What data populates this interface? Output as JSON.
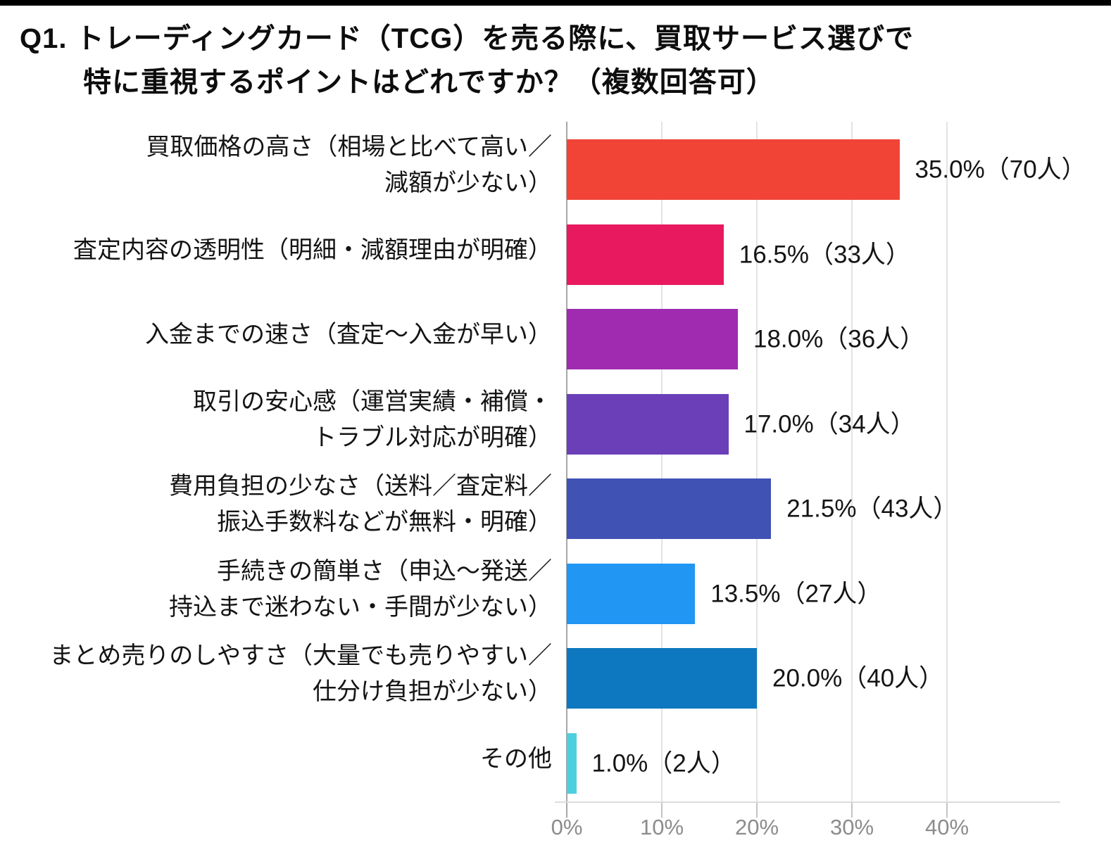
{
  "page": {
    "title_line1": "Q1. トレーディングカード（TCG）を売る際に、買取サービス選びで",
    "title_line2": "特に重視するポイントはどれですか？（複数回答可）"
  },
  "chart_data": {
    "type": "bar",
    "orientation": "horizontal",
    "title": "Q1. トレーディングカード（TCG）を売る際に、買取サービス選びで特に重視するポイントはどれですか？（複数回答可）",
    "categories": [
      "買取価格の高さ（相場と比べて高い／減額が少ない）",
      "査定内容の透明性（明細・減額理由が明確）",
      "入金までの速さ（査定～入金が早い）",
      "取引の安心感（運営実績・補償・トラブル対応が明確）",
      "費用負担の少なさ（送料／査定料／振込手数料などが無料・明確）",
      "手続きの簡単さ（申込～発送／持込まで迷わない・手間が少ない）",
      "まとめ売りのしやすさ（大量でも売りやすい／仕分け負担が少ない）",
      "その他"
    ],
    "category_lines": [
      [
        "買取価格の高さ（相場と比べて高い／",
        "減額が少ない）"
      ],
      [
        "査定内容の透明性（明細・減額理由が明確）"
      ],
      [
        "入金までの速さ（査定～入金が早い）"
      ],
      [
        "取引の安心感（運営実績・補償・",
        "トラブル対応が明確）"
      ],
      [
        "費用負担の少なさ（送料／査定料／",
        "振込手数料などが無料・明確）"
      ],
      [
        "手続きの簡単さ（申込～発送／",
        "持込まで迷わない・手間が少ない）"
      ],
      [
        "まとめ売りのしやすさ（大量でも売りやすい／",
        "仕分け負担が少ない）"
      ],
      [
        "その他"
      ]
    ],
    "values": [
      35.0,
      16.5,
      18.0,
      17.0,
      21.5,
      13.5,
      20.0,
      1.0
    ],
    "counts": [
      70,
      33,
      36,
      34,
      43,
      27,
      40,
      2
    ],
    "value_labels": [
      "35.0%（70人）",
      "16.5%（33人）",
      "18.0%（36人）",
      "17.0%（34人）",
      "21.5%（43人）",
      "13.5%（27人）",
      "20.0%（40人）",
      "1.0%（2人）"
    ],
    "bar_colors": [
      "#f14336",
      "#e8195f",
      "#a02bb0",
      "#6a3fb8",
      "#4052b4",
      "#2196f3",
      "#0d78bf",
      "#4dcfe0"
    ],
    "xlabel": "",
    "ylabel": "",
    "xlim": [
      0,
      45
    ],
    "x_ticks": [
      {
        "value": 0,
        "label": "0%"
      },
      {
        "value": 10,
        "label": "10%"
      },
      {
        "value": 20,
        "label": "20%"
      },
      {
        "value": 30,
        "label": "30%"
      },
      {
        "value": 40,
        "label": "40%"
      }
    ],
    "grid": true,
    "legend": "none",
    "grid_color": "#e3e3e3",
    "axis_line_color": "#a6a6a6",
    "tick_label_color": "#8c8c8c"
  }
}
